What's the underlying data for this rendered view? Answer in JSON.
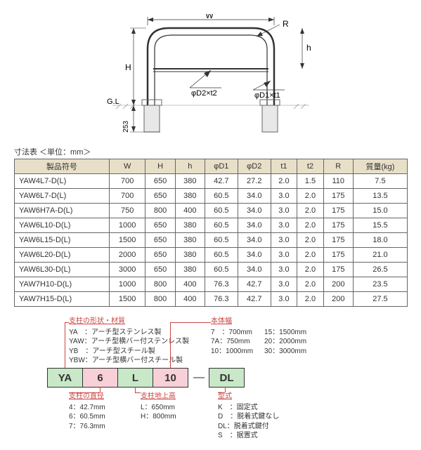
{
  "diagram": {
    "labels": {
      "W": "W",
      "R": "R",
      "h": "h",
      "H": "H",
      "GL": "G.L",
      "depth": "253",
      "D2": "φD2×t2",
      "D1": "φD1×t1"
    }
  },
  "caption": "寸法表 ＜単位：mm＞",
  "table": {
    "headers": [
      "製品符号",
      "W",
      "H",
      "h",
      "φD1",
      "φD2",
      "t1",
      "t2",
      "R",
      "質量(kg)"
    ],
    "rows": [
      [
        "YAW4L7-D(L)",
        "700",
        "650",
        "380",
        "42.7",
        "27.2",
        "2.0",
        "1.5",
        "110",
        "7.5"
      ],
      [
        "YAW6L7-D(L)",
        "700",
        "650",
        "380",
        "60.5",
        "34.0",
        "3.0",
        "2.0",
        "175",
        "13.5"
      ],
      [
        "YAW6H7A-D(L)",
        "750",
        "800",
        "400",
        "60.5",
        "34.0",
        "3.0",
        "2.0",
        "175",
        "15.0"
      ],
      [
        "YAW6L10-D(L)",
        "1000",
        "650",
        "380",
        "60.5",
        "34.0",
        "3.0",
        "2.0",
        "175",
        "15.5"
      ],
      [
        "YAW6L15-D(L)",
        "1500",
        "650",
        "380",
        "60.5",
        "34.0",
        "3.0",
        "2.0",
        "175",
        "18.0"
      ],
      [
        "YAW6L20-D(L)",
        "2000",
        "650",
        "380",
        "60.5",
        "34.0",
        "3.0",
        "2.0",
        "175",
        "21.0"
      ],
      [
        "YAW6L30-D(L)",
        "3000",
        "650",
        "380",
        "60.5",
        "34.0",
        "3.0",
        "2.0",
        "175",
        "26.5"
      ],
      [
        "YAW7H10-D(L)",
        "1000",
        "800",
        "400",
        "76.3",
        "42.7",
        "3.0",
        "2.0",
        "200",
        "23.5"
      ],
      [
        "YAW7H15-D(L)",
        "1500",
        "800",
        "400",
        "76.3",
        "42.7",
        "3.0",
        "2.0",
        "200",
        "27.5"
      ]
    ]
  },
  "decode": {
    "boxes": [
      "YA",
      "6",
      "L",
      "10",
      "—",
      "DL"
    ],
    "sections": {
      "shape": {
        "title": "支柱の形状・材質",
        "rows": [
          "YA　：アーチ型ステンレス製",
          "YAW：アーチ型横バー付ステンレス製",
          "YB　：アーチ型スチール製",
          "YBW：アーチ型横バー付スチール製"
        ]
      },
      "width": {
        "title": "本体幅",
        "col1": [
          "7　：700mm",
          "7A：750mm",
          "10：1000mm"
        ],
        "col2": [
          "15：1500mm",
          "20：2000mm",
          "30：3000mm"
        ]
      },
      "diameter": {
        "title": "支柱の直径",
        "rows": [
          "4：42.7mm",
          "6：60.5mm",
          "7：76.3mm"
        ]
      },
      "height": {
        "title": "支柱地上高",
        "rows": [
          "L：650mm",
          "H：800mm"
        ]
      },
      "type": {
        "title": "型式",
        "rows": [
          "K　：固定式",
          "D　：脱着式鍵なし",
          "DL：脱着式鍵付",
          "S　：据置式"
        ]
      }
    }
  }
}
